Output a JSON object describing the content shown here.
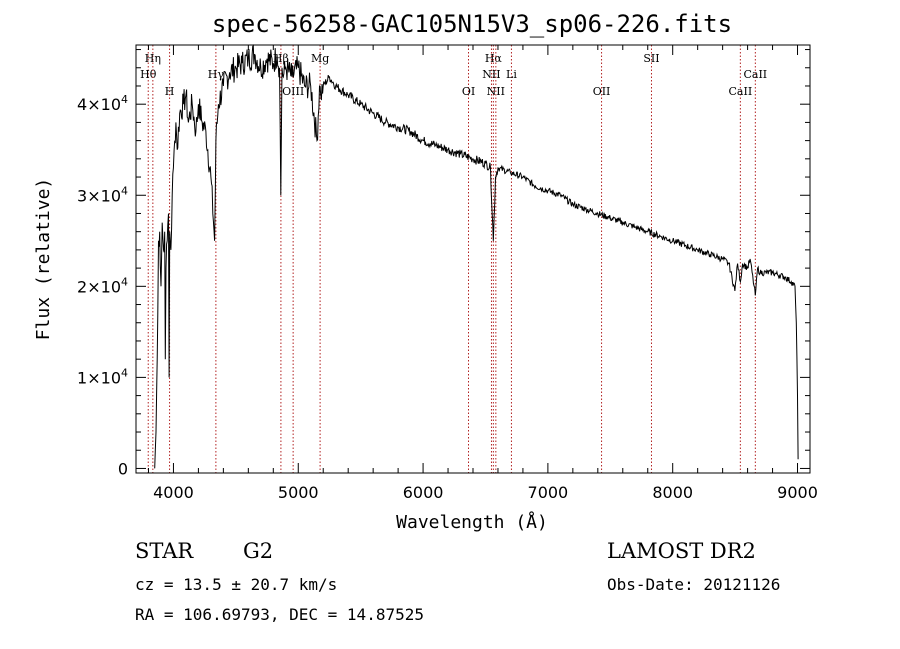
{
  "chart_data": {
    "type": "line",
    "title": "spec-56258-GAC105N15V3_sp06-226.fits",
    "xlabel": "Wavelength (Å)",
    "ylabel": "Flux (relative)",
    "xlim": [
      3700,
      9100
    ],
    "ylim": [
      -500,
      46500
    ],
    "x_ticks": [
      4000,
      5000,
      6000,
      7000,
      8000,
      9000
    ],
    "x_tick_labels": [
      "4000",
      "5000",
      "6000",
      "7000",
      "8000",
      "9000"
    ],
    "y_ticks": [
      0,
      10000,
      20000,
      30000,
      40000
    ],
    "y_tick_labels": [
      {
        "mant": "0",
        "exp": ""
      },
      {
        "mant": "1×10",
        "exp": "4"
      },
      {
        "mant": "2×10",
        "exp": "4"
      },
      {
        "mant": "3×10",
        "exp": "4"
      },
      {
        "mant": "4×10",
        "exp": "4"
      }
    ],
    "spectrum": {
      "x": [
        3850,
        3860,
        3870,
        3875,
        3880,
        3890,
        3900,
        3910,
        3920,
        3930,
        3935,
        3940,
        3950,
        3960,
        3965,
        3970,
        3980,
        3990,
        4000,
        4010,
        4020,
        4030,
        4050,
        4080,
        4100,
        4120,
        4150,
        4180,
        4200,
        4230,
        4260,
        4300,
        4330,
        4340,
        4360,
        4400,
        4450,
        4500,
        4550,
        4600,
        4650,
        4700,
        4750,
        4800,
        4830,
        4850,
        4860,
        4870,
        4880,
        4900,
        4950,
        5000,
        5050,
        5100,
        5150,
        5170,
        5180,
        5200,
        5250,
        5300,
        5400,
        5500,
        5600,
        5700,
        5800,
        5900,
        6000,
        6100,
        6200,
        6300,
        6400,
        6500,
        6540,
        6563,
        6580,
        6600,
        6700,
        6800,
        6900,
        7000,
        7100,
        7200,
        7300,
        7400,
        7500,
        7600,
        7700,
        7800,
        7900,
        8000,
        8100,
        8200,
        8300,
        8400,
        8450,
        8498,
        8520,
        8542,
        8560,
        8600,
        8620,
        8662,
        8680,
        8700,
        8800,
        8900,
        8950,
        8980,
        8990,
        9000,
        9005
      ],
      "y": [
        0,
        4000,
        12000,
        17000,
        25000,
        26000,
        20000,
        27000,
        24000,
        26000,
        12000,
        22000,
        25000,
        28000,
        10000,
        26000,
        24000,
        30000,
        33000,
        36000,
        38000,
        35000,
        39000,
        40000,
        41000,
        38000,
        40000,
        37000,
        40000,
        38000,
        37000,
        32000,
        25000,
        36000,
        40000,
        42000,
        43500,
        44000,
        44500,
        45000,
        45500,
        44000,
        45000,
        44500,
        45500,
        44000,
        30000,
        44000,
        43000,
        44000,
        43000,
        44000,
        42000,
        42000,
        36000,
        42000,
        41000,
        42000,
        43000,
        42000,
        41000,
        40000,
        39000,
        38000,
        37500,
        37000,
        36000,
        35500,
        35000,
        34500,
        34000,
        33500,
        33000,
        25000,
        32000,
        33000,
        32500,
        32000,
        31000,
        30500,
        30000,
        29000,
        28500,
        28000,
        27500,
        27000,
        26500,
        26000,
        25500,
        25000,
        24500,
        24000,
        23500,
        23000,
        22500,
        19500,
        22500,
        20500,
        22500,
        22000,
        23000,
        19000,
        22000,
        21500,
        21500,
        21000,
        20500,
        20000,
        16000,
        8000,
        1000
      ]
    },
    "lines": [
      {
        "name": "Hθ",
        "x": 3798,
        "row": 2
      },
      {
        "name": "Hη",
        "x": 3835,
        "row": 1
      },
      {
        "name": "H",
        "x": 3969,
        "row": 3
      },
      {
        "name": "Hγ",
        "x": 4340,
        "row": 2
      },
      {
        "name": "Hβ",
        "x": 4861,
        "row": 1
      },
      {
        "name": "OIII",
        "x": 4959,
        "row": 3
      },
      {
        "name": "Mg",
        "x": 5175,
        "row": 1
      },
      {
        "name": "OI",
        "x": 6364,
        "row": 3
      },
      {
        "name": "Hα",
        "x": 6563,
        "row": 1
      },
      {
        "name": "NII",
        "x": 6548,
        "row": 2
      },
      {
        "name": "NII",
        "x": 6583,
        "row": 3
      },
      {
        "name": "Li",
        "x": 6708,
        "row": 2
      },
      {
        "name": "OII",
        "x": 7430,
        "row": 3
      },
      {
        "name": "SII",
        "x": 7830,
        "row": 1
      },
      {
        "name": "CaII",
        "x": 8542,
        "row": 3
      },
      {
        "name": "CaII",
        "x": 8662,
        "row": 2
      }
    ],
    "grid": false
  },
  "footer": {
    "class": "STAR",
    "subclass": "G2",
    "survey": "LAMOST DR2",
    "cz": "cz = 13.5 ± 20.7 km/s",
    "obs_date": "Obs-Date: 20121126",
    "coords": "RA = 106.69793, DEC =  14.87525"
  },
  "colors": {
    "axis": "#000000",
    "spectrum": "#000000",
    "line_marker": "#b22222"
  }
}
